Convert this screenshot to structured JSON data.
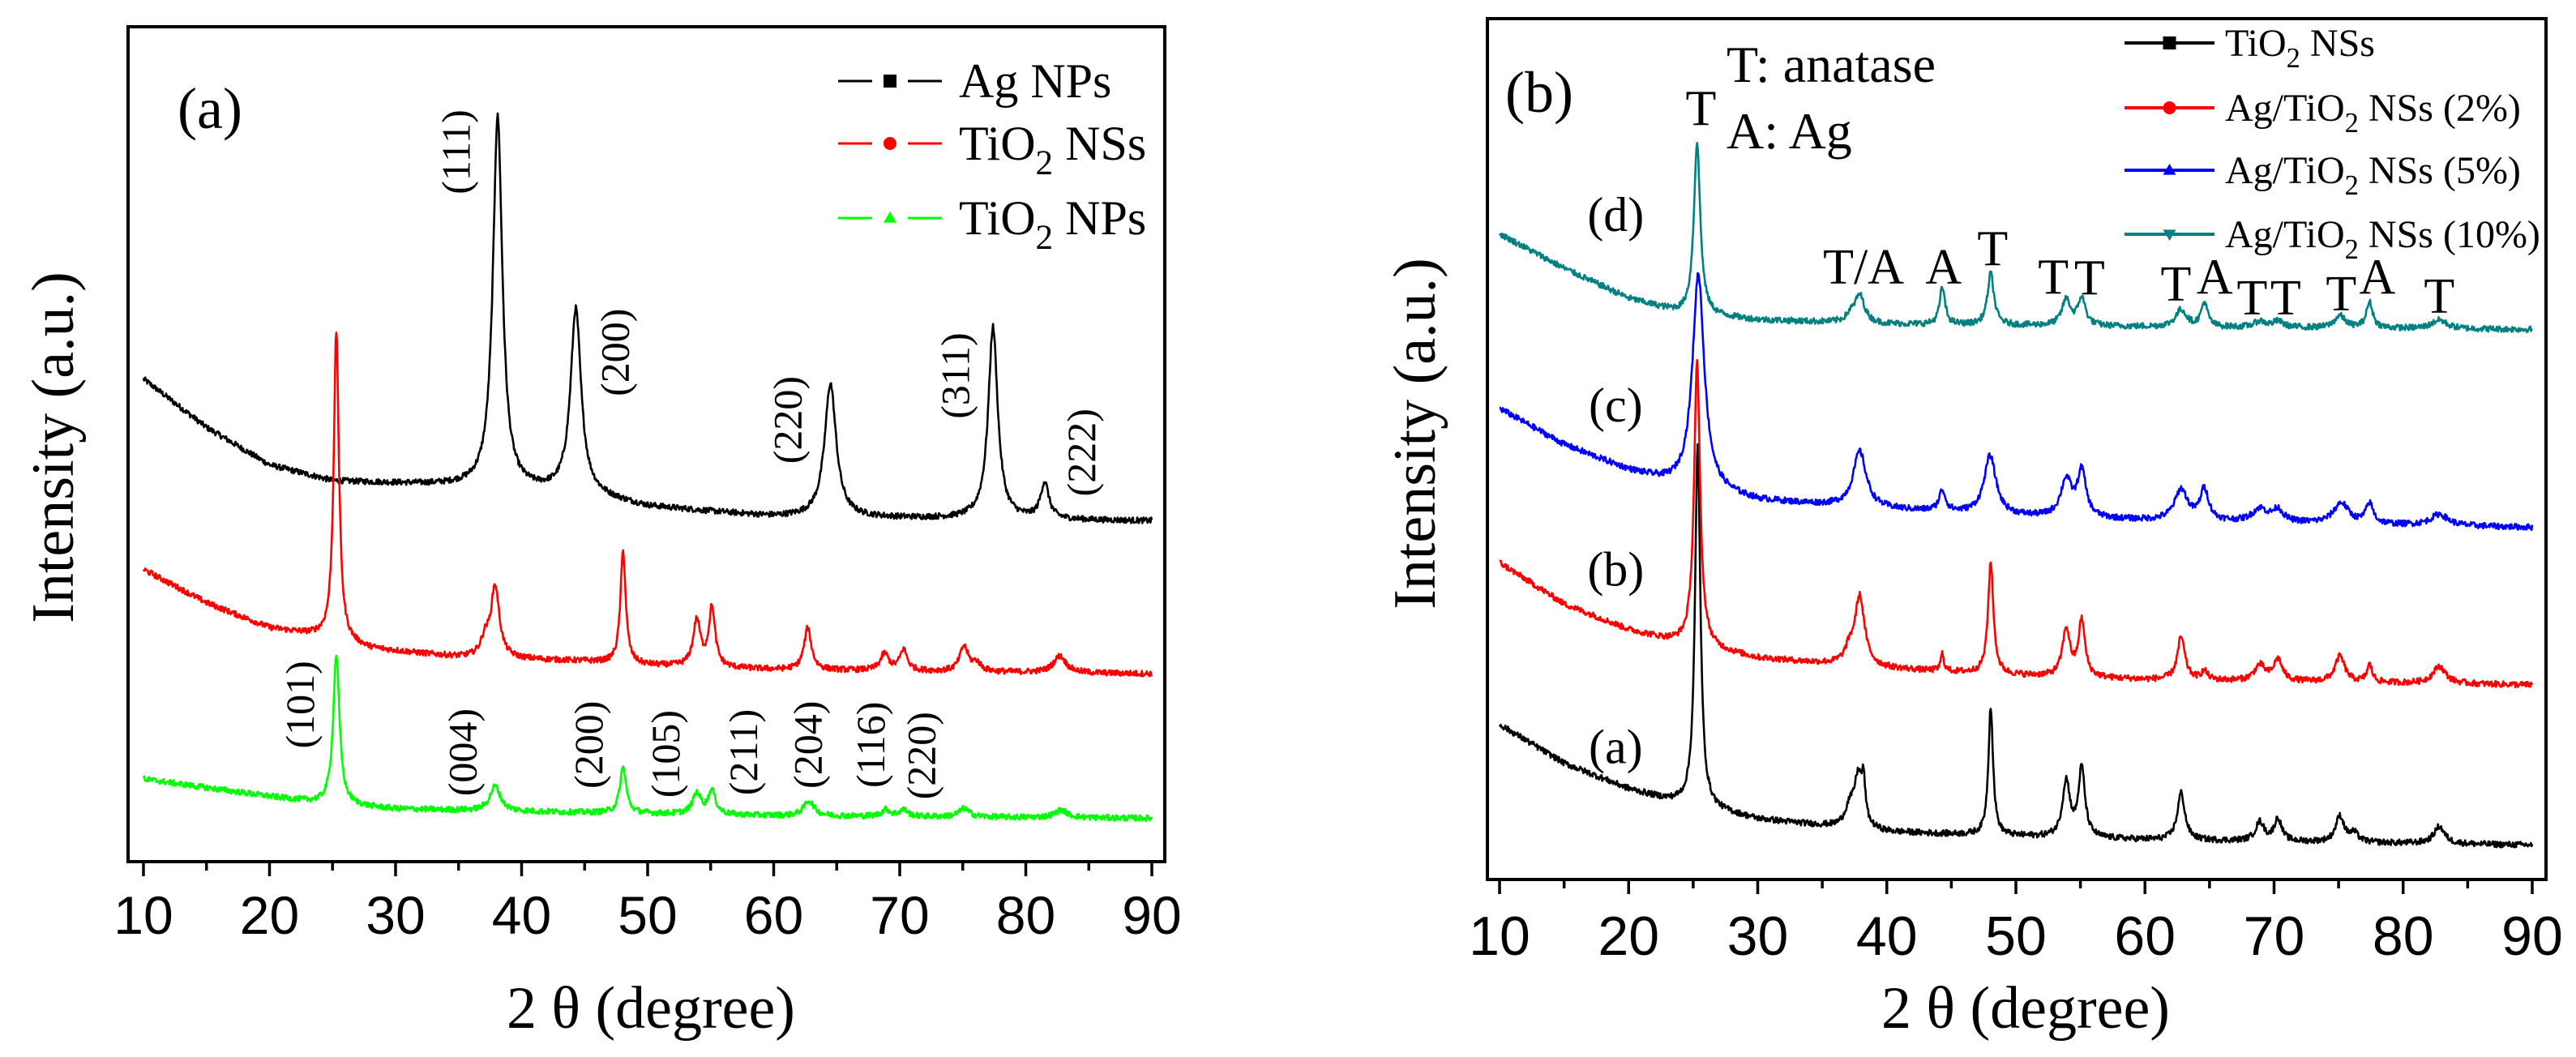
{
  "chart_data": [
    {
      "type": "line",
      "panel_label": "(a)",
      "xlabel": "2 θ  (degree)",
      "ylabel": "Intensity (a.u.)",
      "xlim": [
        10,
        90
      ],
      "ylim": [
        0,
        100
      ],
      "xticks": [
        10,
        20,
        30,
        40,
        50,
        60,
        70,
        80,
        90
      ],
      "xtick_labels": [
        "10",
        "20",
        "30",
        "40",
        "50",
        "60",
        "70",
        "80",
        "90"
      ],
      "grid": false,
      "legend_position": "top-right",
      "series": [
        {
          "name": "Ag NPs",
          "label": {
            "pre": "Ag NPs",
            "sub": "",
            "post": ""
          },
          "color": "#000000",
          "marker": "square",
          "baseline": [
            [
              10,
              57.8
            ],
            [
              15,
              52
            ],
            [
              20,
              47.5
            ],
            [
              25,
              45.6
            ],
            [
              35,
              45
            ],
            [
              45,
              44
            ],
            [
              50,
              42.5
            ],
            [
              60,
              41.3
            ],
            [
              90,
              40.8
            ]
          ],
          "peaks": [
            [
              38.1,
              44.5,
              0.45
            ],
            [
              44.3,
              22,
              0.5
            ],
            [
              64.5,
              16,
              0.55
            ],
            [
              77.4,
              23,
              0.45
            ],
            [
              81.5,
              4.3,
              0.4
            ]
          ]
        },
        {
          "name": "TiO2 NSs",
          "label": {
            "pre": "TiO",
            "sub": "2",
            "post": " NSs"
          },
          "color": "#ff0000",
          "marker": "circle",
          "baseline": [
            [
              10,
              35
            ],
            [
              15,
              31
            ],
            [
              20,
              28
            ],
            [
              24,
              27
            ],
            [
              28,
              25.5
            ],
            [
              35,
              24.5
            ],
            [
              45,
              24
            ],
            [
              50,
              23.5
            ],
            [
              60,
              23
            ],
            [
              90,
              22.5
            ]
          ],
          "peaks": [
            [
              25.3,
              37,
              0.25
            ],
            [
              37.1,
              2,
              0.4
            ],
            [
              37.9,
              8.5,
              0.4
            ],
            [
              48.05,
              13.5,
              0.25
            ],
            [
              53.9,
              5.5,
              0.35
            ],
            [
              55.1,
              7,
              0.3
            ],
            [
              62.7,
              5,
              0.35
            ],
            [
              68.8,
              2,
              0.4
            ],
            [
              70.3,
              2.5,
              0.35
            ],
            [
              75.1,
              3,
              0.4
            ],
            [
              76.1,
              1,
              0.4
            ],
            [
              82.7,
              2,
              0.6
            ]
          ]
        },
        {
          "name": "TiO2 NPs",
          "label": {
            "pre": "TiO",
            "sub": "2",
            "post": " NPs"
          },
          "color": "#00ff00",
          "marker": "triangle-up",
          "baseline": [
            [
              10,
              9.9
            ],
            [
              20,
              7.8
            ],
            [
              24,
              7
            ],
            [
              30,
              6.3
            ],
            [
              40,
              6
            ],
            [
              60,
              5.5
            ],
            [
              90,
              5.2
            ]
          ],
          "peaks": [
            [
              25.3,
              18,
              0.3
            ],
            [
              37.9,
              3,
              0.5
            ],
            [
              48.05,
              5.5,
              0.3
            ],
            [
              53.9,
              2.5,
              0.4
            ],
            [
              55.1,
              2.8,
              0.35
            ],
            [
              62.8,
              1.8,
              0.5
            ],
            [
              68.9,
              0.8,
              0.4
            ],
            [
              70.3,
              0.8,
              0.4
            ],
            [
              75.1,
              1,
              0.5
            ],
            [
              82.8,
              0.9,
              0.6
            ]
          ]
        }
      ],
      "annotations": [
        {
          "text": "(111)",
          "x": 34.8,
          "y": 85,
          "rotate": true
        },
        {
          "text": "(200)",
          "x": 47.4,
          "y": 61,
          "rotate": true
        },
        {
          "text": "(220)",
          "x": 61.1,
          "y": 52.9,
          "rotate": true
        },
        {
          "text": "(311)",
          "x": 74.4,
          "y": 58.2,
          "rotate": true
        },
        {
          "text": "(222)",
          "x": 84.4,
          "y": 49,
          "rotate": true
        },
        {
          "text": "(101)",
          "x": 22.4,
          "y": 18.8,
          "rotate": true
        },
        {
          "text": "(004)",
          "x": 35.3,
          "y": 13.1,
          "rotate": true
        },
        {
          "text": "(200)",
          "x": 45.3,
          "y": 14,
          "rotate": true
        },
        {
          "text": "(105)",
          "x": 51.4,
          "y": 12.9,
          "rotate": true
        },
        {
          "text": "(211)",
          "x": 57.6,
          "y": 13.1,
          "rotate": true
        },
        {
          "text": "(204)",
          "x": 62.7,
          "y": 14,
          "rotate": true
        },
        {
          "text": "(116)",
          "x": 67.7,
          "y": 14,
          "rotate": true
        },
        {
          "text": "(220)",
          "x": 71.7,
          "y": 12.7,
          "rotate": true
        }
      ]
    },
    {
      "type": "line",
      "panel_label": "(b)",
      "xlabel": "2 θ  (degree)",
      "ylabel": "Intensity (a.u.)",
      "xlim": [
        10,
        90
      ],
      "ylim": [
        0,
        100
      ],
      "xticks": [
        10,
        20,
        30,
        40,
        50,
        60,
        70,
        80,
        90
      ],
      "xtick_labels": [
        "10",
        "20",
        "30",
        "40",
        "50",
        "60",
        "70",
        "80",
        "90"
      ],
      "grid": false,
      "legend_position": "top-right",
      "key_text": [
        "T: anatase",
        "A: Ag"
      ],
      "series": [
        {
          "name": "TiO2 NSs",
          "label": {
            "pre": "TiO",
            "sub": "2",
            "post": " NSs"
          },
          "curve_label": "(a)",
          "color": "#000000",
          "marker": "square",
          "baseline": [
            [
              10,
              18
            ],
            [
              15,
              13.5
            ],
            [
              20,
              10.5
            ],
            [
              23,
              9.2
            ],
            [
              30,
              7
            ],
            [
              40,
              5.5
            ],
            [
              50,
              5
            ],
            [
              60,
              4.6
            ],
            [
              90,
              4
            ]
          ],
          "peaks": [
            [
              25.35,
              42,
              0.25
            ],
            [
              37.1,
              2,
              0.4
            ],
            [
              37.8,
              6,
              0.4
            ],
            [
              38.2,
              4,
              0.15
            ],
            [
              48.05,
              15,
              0.22
            ],
            [
              53.9,
              6.5,
              0.35
            ],
            [
              55.1,
              8,
              0.3
            ],
            [
              62.8,
              5.5,
              0.35
            ],
            [
              68.9,
              2.2,
              0.4
            ],
            [
              70.3,
              2.6,
              0.35
            ],
            [
              75.1,
              3,
              0.4
            ],
            [
              76.2,
              1,
              0.4
            ],
            [
              82.8,
              2,
              0.5
            ]
          ]
        },
        {
          "name": "Ag/TiO2 NSs (2%)",
          "label": {
            "pre": "Ag/TiO",
            "sub": "2",
            "post": " NSs (2%)"
          },
          "curve_label": "(b)",
          "color": "#ff0000",
          "marker": "circle",
          "baseline": [
            [
              10,
              36.8
            ],
            [
              15,
              32
            ],
            [
              20,
              29
            ],
            [
              23,
              27.8
            ],
            [
              30,
              25.7
            ],
            [
              40,
              24.5
            ],
            [
              50,
              23.7
            ],
            [
              60,
              23.2
            ],
            [
              90,
              22.6
            ]
          ],
          "peaks": [
            [
              25.3,
              33,
              0.28
            ],
            [
              37.1,
              1.5,
              0.4
            ],
            [
              37.9,
              8,
              0.45
            ],
            [
              44.3,
              2,
              0.15
            ],
            [
              48.05,
              13,
              0.25
            ],
            [
              53.9,
              5.5,
              0.35
            ],
            [
              55.1,
              6.5,
              0.3
            ],
            [
              62.8,
              5,
              0.35
            ],
            [
              64.6,
              1,
              0.3
            ],
            [
              68.9,
              1.8,
              0.5
            ],
            [
              70.3,
              2.5,
              0.4
            ],
            [
              75.1,
              3,
              0.45
            ],
            [
              77.4,
              2,
              0.25
            ],
            [
              82.8,
              2,
              0.6
            ]
          ]
        },
        {
          "name": "Ag/TiO2 NSs (5%)",
          "label": {
            "pre": "Ag/TiO",
            "sub": "2",
            "post": " NSs (5%)"
          },
          "curve_label": "(c)",
          "color": "#0000ff",
          "marker": "triangle-up",
          "baseline": [
            [
              10,
              54.7
            ],
            [
              15,
              50.5
            ],
            [
              20,
              47.5
            ],
            [
              23,
              46.1
            ],
            [
              30,
              44
            ],
            [
              40,
              43
            ],
            [
              50,
              42.2
            ],
            [
              60,
              41.7
            ],
            [
              90,
              40.9
            ]
          ],
          "peaks": [
            [
              25.4,
              25,
              0.55
            ],
            [
              37.9,
              6.5,
              0.6
            ],
            [
              44.3,
              2.4,
              0.3
            ],
            [
              48.0,
              6.8,
              0.55
            ],
            [
              53.9,
              4.3,
              0.5
            ],
            [
              55.1,
              5.3,
              0.4
            ],
            [
              62.8,
              3.6,
              0.6
            ],
            [
              64.6,
              3.6,
              0.4
            ],
            [
              68.9,
              1.5,
              0.7
            ],
            [
              70.3,
              1.4,
              0.5
            ],
            [
              75.2,
              2.4,
              0.7
            ],
            [
              77.4,
              2.3,
              0.35
            ],
            [
              82.8,
              1.3,
              0.8
            ]
          ]
        },
        {
          "name": "Ag/TiO2 NSs (10%)",
          "label": {
            "pre": "Ag/TiO",
            "sub": "2",
            "post": " NSs (10%)"
          },
          "curve_label": "(d)",
          "color": "#008080",
          "marker": "triangle-down",
          "baseline": [
            [
              10,
              75
            ],
            [
              15,
              71
            ],
            [
              20,
              67.5
            ],
            [
              24,
              65.8
            ],
            [
              30,
              65
            ],
            [
              40,
              64.5
            ],
            [
              60,
              64.2
            ],
            [
              90,
              63.9
            ]
          ],
          "peaks": [
            [
              25.3,
              20,
              0.3
            ],
            [
              37.2,
              0.8,
              0.4
            ],
            [
              37.9,
              3.2,
              0.45
            ],
            [
              44.3,
              4.3,
              0.25
            ],
            [
              48.05,
              6,
              0.3
            ],
            [
              53.9,
              3,
              0.4
            ],
            [
              55.1,
              3.2,
              0.35
            ],
            [
              62.8,
              2,
              0.5
            ],
            [
              64.6,
              2.8,
              0.3
            ],
            [
              68.9,
              0.7,
              0.5
            ],
            [
              70.3,
              0.7,
              0.5
            ],
            [
              75.1,
              1.4,
              0.5
            ],
            [
              77.4,
              3,
              0.3
            ],
            [
              82.8,
              1,
              0.7
            ]
          ]
        }
      ],
      "curve_label_positions": [
        [
          19,
          15.4
        ],
        [
          19,
          36
        ],
        [
          19,
          55.1
        ],
        [
          19,
          77.2
        ]
      ],
      "annotations": [
        {
          "text": "T",
          "x": 25.6,
          "y": 89.5,
          "rotate": false
        },
        {
          "text": "T/A",
          "x": 38.2,
          "y": 71.1,
          "rotate": false
        },
        {
          "text": "A",
          "x": 44.4,
          "y": 71.1,
          "rotate": false
        },
        {
          "text": "T",
          "x": 48.2,
          "y": 73.2,
          "rotate": false
        },
        {
          "text": "T",
          "x": 52.9,
          "y": 69.9,
          "rotate": false
        },
        {
          "text": "T",
          "x": 55.7,
          "y": 69.8,
          "rotate": false
        },
        {
          "text": "T",
          "x": 62.4,
          "y": 69.1,
          "rotate": false
        },
        {
          "text": "A",
          "x": 65.4,
          "y": 69.9,
          "rotate": false
        },
        {
          "text": "T",
          "x": 68.3,
          "y": 67.5,
          "rotate": false
        },
        {
          "text": "T",
          "x": 70.9,
          "y": 67.5,
          "rotate": false
        },
        {
          "text": "T",
          "x": 75.2,
          "y": 68,
          "rotate": false
        },
        {
          "text": "A",
          "x": 78,
          "y": 69.9,
          "rotate": false
        },
        {
          "text": "T",
          "x": 82.8,
          "y": 67.7,
          "rotate": false
        }
      ]
    }
  ]
}
